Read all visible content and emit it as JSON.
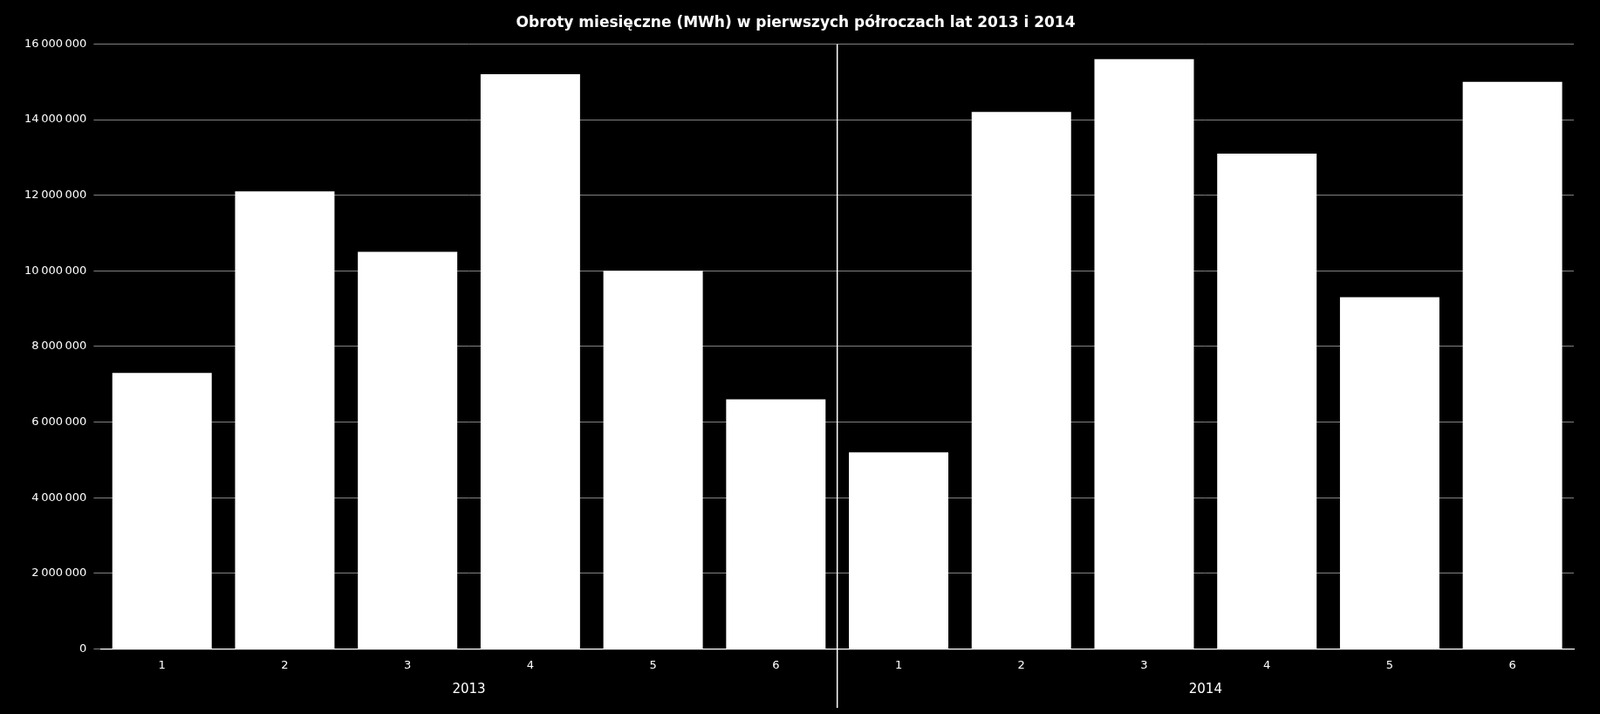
{
  "chart_data": {
    "type": "bar",
    "title": "Obroty miesięczne (MWh) w pierwszych półroczach lat 2013 i 2014",
    "categories": [
      "1",
      "2",
      "3",
      "4",
      "5",
      "6",
      "1",
      "2",
      "3",
      "4",
      "5",
      "6"
    ],
    "values": [
      7300000,
      12100000,
      10500000,
      15200000,
      10000000,
      6600000,
      5200000,
      14200000,
      15600000,
      13100000,
      9300000,
      15000000
    ],
    "color": "#ffffff",
    "annotations": [
      "2013",
      "2014"
    ],
    "ylim": [
      0,
      16000000
    ],
    "yticks": [
      0,
      {
        "value": 2000000,
        "label": "2 000 000"
      },
      {
        "value": 4000000,
        "label": "4 000 000"
      },
      {
        "value": 6000000,
        "label": "6 000 000"
      },
      {
        "value": 8000000,
        "label": "8 000 000"
      },
      {
        "value": 10000000,
        "label": "10 000 000"
      },
      {
        "value": 12000000,
        "label": "12 000 000"
      },
      {
        "value": 14000000,
        "label": "14 000 000"
      },
      {
        "value": 16000000,
        "label": "16 000 000"
      }
    ],
    "grid": true
  }
}
